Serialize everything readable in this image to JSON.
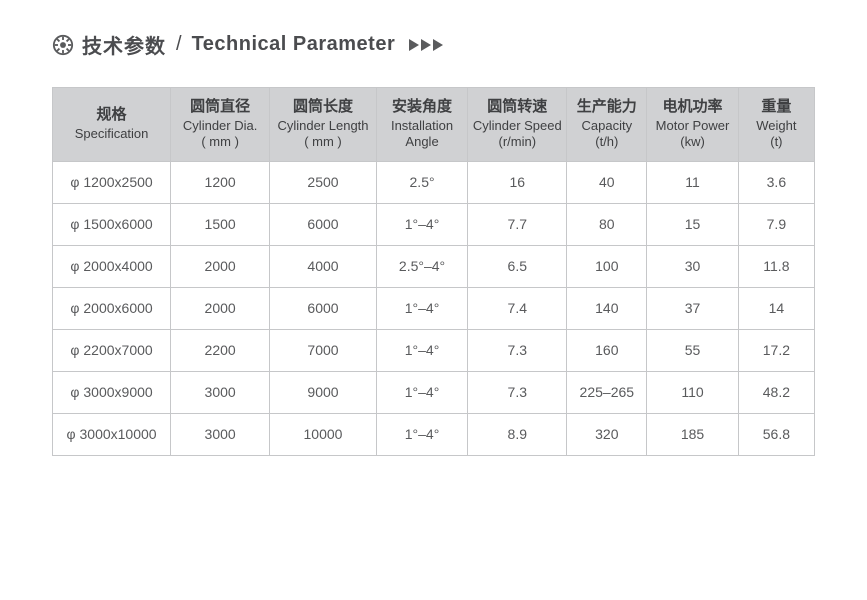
{
  "title": {
    "cn": "技术参数",
    "separator": "/",
    "en": "Technical Parameter"
  },
  "colors": {
    "text": "#595a5c",
    "heading": "#4b4c4f",
    "header_bg": "#d0d1d3",
    "border": "#c6c7c9",
    "icon": "#5a5b5d"
  },
  "table": {
    "type": "table",
    "columns": [
      {
        "cn": "规格",
        "en": "Specification",
        "unit": ""
      },
      {
        "cn": "圆筒直径",
        "en": "Cylinder Dia.",
        "unit": "( mm )"
      },
      {
        "cn": "圆筒长度",
        "en": "Cylinder Length",
        "unit": "( mm )"
      },
      {
        "cn": "安装角度",
        "en": "Installation",
        "unit": "Angle"
      },
      {
        "cn": "圆筒转速",
        "en": "Cylinder Speed",
        "unit": "(r/min)"
      },
      {
        "cn": "生产能力",
        "en": "Capacity",
        "unit": "(t/h)"
      },
      {
        "cn": "电机功率",
        "en": "Motor Power",
        "unit": "(kw)"
      },
      {
        "cn": "重量",
        "en": "Weight",
        "unit": "(t)"
      }
    ],
    "col_widths_pct": [
      15.5,
      13,
      14,
      12,
      13,
      10.5,
      12,
      10
    ],
    "rows": [
      [
        "φ 1200x2500",
        "1200",
        "2500",
        "2.5°",
        "16",
        "40",
        "11",
        "3.6"
      ],
      [
        "φ 1500x6000",
        "1500",
        "6000",
        "1°–4°",
        "7.7",
        "80",
        "15",
        "7.9"
      ],
      [
        "φ 2000x4000",
        "2000",
        "4000",
        "2.5°–4°",
        "6.5",
        "100",
        "30",
        "11.8"
      ],
      [
        "φ 2000x6000",
        "2000",
        "6000",
        "1°–4°",
        "7.4",
        "140",
        "37",
        "14"
      ],
      [
        "φ 2200x7000",
        "2200",
        "7000",
        "1°–4°",
        "7.3",
        "160",
        "55",
        "17.2"
      ],
      [
        "φ 3000x9000",
        "3000",
        "9000",
        "1°–4°",
        "7.3",
        "225–265",
        "110",
        "48.2"
      ],
      [
        "φ 3000x10000",
        "3000",
        "10000",
        "1°–4°",
        "8.9",
        "320",
        "185",
        "56.8"
      ]
    ]
  }
}
